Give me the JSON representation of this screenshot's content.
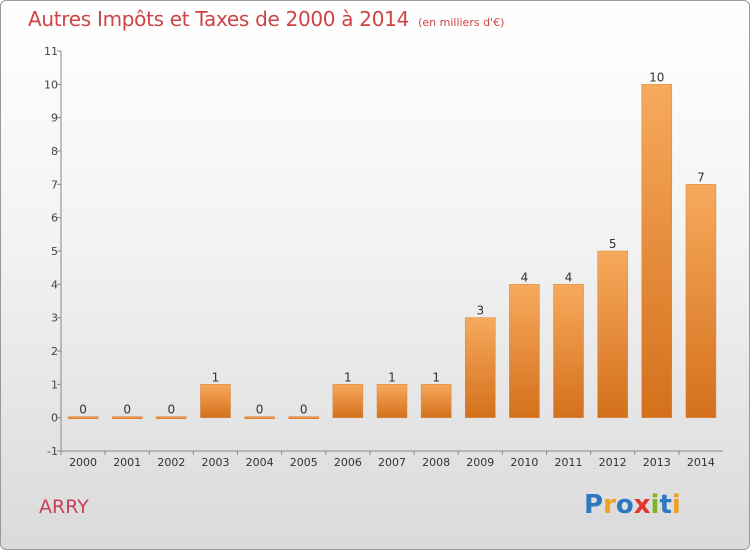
{
  "title": {
    "main": "Autres Impôts et Taxes de 2000 à 2014",
    "unit": "(en milliers d'€)"
  },
  "commune": "ARRY",
  "brand": {
    "name": "Proxiti",
    "letters": [
      {
        "ch": "P",
        "color": "#2e78c2"
      },
      {
        "ch": "r",
        "color": "#f0a020"
      },
      {
        "ch": "o",
        "color": "#2e78c2"
      },
      {
        "ch": "x",
        "color": "#e2372b"
      },
      {
        "ch": "i",
        "color": "#7cb51f"
      },
      {
        "ch": "t",
        "color": "#2e78c2"
      },
      {
        "ch": "i",
        "color": "#f0a020"
      }
    ]
  },
  "chart_data": {
    "type": "bar",
    "title": "Autres Impôts et Taxes de 2000 à 2014",
    "subtitle": "(en milliers d'€)",
    "categories": [
      "2000",
      "2001",
      "2002",
      "2003",
      "2004",
      "2005",
      "2006",
      "2007",
      "2008",
      "2009",
      "2010",
      "2011",
      "2012",
      "2013",
      "2014"
    ],
    "values": [
      0,
      0,
      0,
      1,
      0,
      0,
      1,
      1,
      1,
      3,
      4,
      4,
      5,
      10,
      7
    ],
    "data_labels": [
      "0",
      "0",
      "0",
      "1",
      "0",
      "0",
      "1",
      "1",
      "1",
      "3",
      "4",
      "4",
      "5",
      "10",
      "7"
    ],
    "y_ticks": [
      -1,
      0,
      1,
      2,
      3,
      4,
      5,
      6,
      7,
      8,
      9,
      10,
      11
    ],
    "ylim": [
      -1,
      11
    ],
    "grid": false,
    "bar_color_top": "#f7aa5c",
    "bar_color_bottom": "#d4701c"
  }
}
